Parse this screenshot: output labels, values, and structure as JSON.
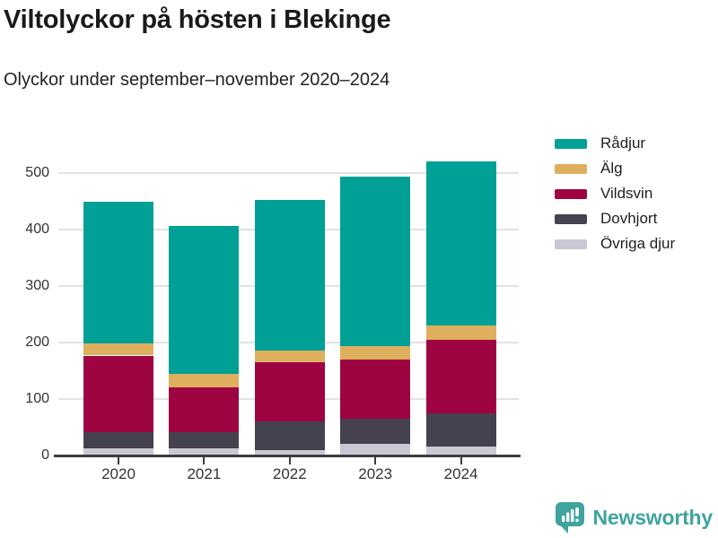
{
  "header": {
    "title": "Viltolyckor på hösten i Blekinge",
    "subtitle": "Olyckor under september–november 2020–2024"
  },
  "chart_data": {
    "type": "bar",
    "stacked": true,
    "title": "Viltolyckor på hösten i Blekinge",
    "subtitle": "Olyckor under september–november 2020–2024",
    "categories": [
      "2020",
      "2021",
      "2022",
      "2023",
      "2024"
    ],
    "series": [
      {
        "name": "Övriga djur",
        "color": "#c9c8d4",
        "values": [
          13,
          13,
          10,
          20,
          16
        ]
      },
      {
        "name": "Dovhjort",
        "color": "#45414e",
        "values": [
          29,
          29,
          50,
          45,
          58
        ]
      },
      {
        "name": "Vildsvin",
        "color": "#9e0342",
        "values": [
          135,
          79,
          105,
          105,
          131
        ]
      },
      {
        "name": "Älg",
        "color": "#deb05e",
        "values": [
          21,
          23,
          21,
          23,
          25
        ]
      },
      {
        "name": "Rådjur",
        "color": "#00a096",
        "values": [
          252,
          262,
          267,
          301,
          290
        ]
      }
    ],
    "totals": [
      450,
      406,
      453,
      494,
      520
    ],
    "xlabel": "",
    "ylabel": "",
    "ylim": [
      0,
      530
    ],
    "yticks": [
      0,
      100,
      200,
      300,
      400,
      500
    ],
    "grid": true,
    "legend_position": "right",
    "legend_order": [
      "Rådjur",
      "Älg",
      "Vildsvin",
      "Dovhjort",
      "Övriga djur"
    ]
  },
  "footer": {
    "brand": "Newsworthy",
    "brand_color": "#3fa49d",
    "logo_icon": "bar-chart-speech-bubble-icon"
  }
}
